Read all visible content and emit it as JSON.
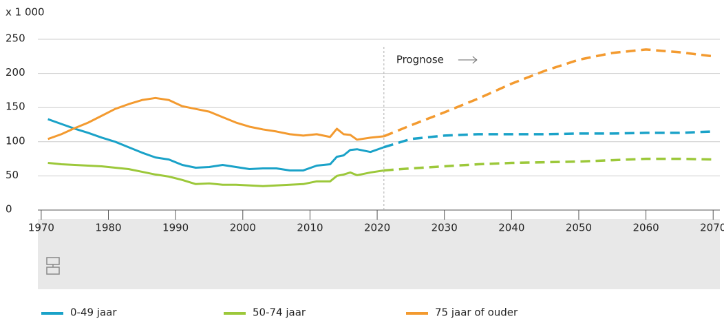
{
  "chart_data": {
    "type": "line",
    "y_axis_label": "x 1 000",
    "annotations": [
      {
        "text": "Prognose",
        "x": 2021
      }
    ],
    "x": [
      1971,
      1973,
      1975,
      1977,
      1979,
      1981,
      1983,
      1985,
      1987,
      1989,
      1991,
      1993,
      1995,
      1997,
      1999,
      2001,
      2003,
      2005,
      2007,
      2009,
      2011,
      2013,
      2014,
      2015,
      2016,
      2017,
      2019,
      2021,
      2025,
      2030,
      2035,
      2040,
      2045,
      2050,
      2055,
      2060,
      2065,
      2070
    ],
    "series": [
      {
        "name": "0-49 jaar",
        "color": "#1aa2c8",
        "values": [
          133,
          126,
          119,
          113,
          106,
          100,
          92,
          84,
          77,
          74,
          66,
          62,
          63,
          66,
          63,
          60,
          61,
          61,
          58,
          58,
          65,
          67,
          78,
          80,
          88,
          89,
          85,
          92,
          104,
          109,
          111,
          111,
          111,
          112,
          112,
          113,
          113,
          115
        ]
      },
      {
        "name": "50-74 jaar",
        "color": "#9cc83a",
        "values": [
          69,
          67,
          66,
          65,
          64,
          62,
          60,
          56,
          52,
          49,
          44,
          38,
          39,
          37,
          37,
          36,
          35,
          36,
          37,
          38,
          42,
          42,
          50,
          52,
          55,
          51,
          55,
          58,
          61,
          64,
          67,
          69,
          70,
          71,
          73,
          75,
          75,
          74
        ]
      },
      {
        "name": "75 jaar of ouder",
        "color": "#f39a2f",
        "values": [
          104,
          111,
          120,
          128,
          138,
          148,
          155,
          161,
          164,
          161,
          152,
          148,
          144,
          136,
          128,
          122,
          118,
          115,
          111,
          109,
          111,
          107,
          119,
          111,
          110,
          103,
          106,
          108,
          124,
          143,
          163,
          185,
          204,
          220,
          230,
          235,
          231,
          225
        ]
      }
    ],
    "xlim": [
      1969.5,
      2071
    ],
    "xticks": [
      1970,
      1980,
      1990,
      2000,
      2010,
      2020,
      2030,
      2040,
      2050,
      2060,
      2070
    ],
    "ylim": [
      0,
      250
    ],
    "yticks": [
      0,
      50,
      100,
      150,
      200,
      250
    ],
    "grid": true
  }
}
